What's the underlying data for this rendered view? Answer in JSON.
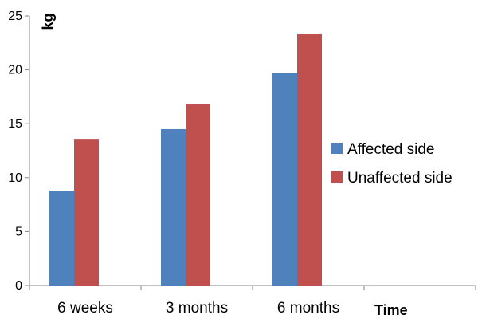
{
  "chart_data": {
    "type": "bar",
    "categories": [
      "6 weeks",
      "3 months",
      "6 months"
    ],
    "series": [
      {
        "name": "Affected side",
        "values": [
          8.8,
          14.5,
          19.7
        ],
        "color": "#4F81BD"
      },
      {
        "name": "Unaffected side",
        "values": [
          13.6,
          16.8,
          23.3
        ],
        "color": "#C0504D"
      }
    ],
    "xlabel": "Time",
    "ylabel": "kg",
    "ylim": [
      0,
      25
    ],
    "yticks": [
      "0",
      "5",
      "10",
      "15",
      "20",
      "25"
    ],
    "grid": false,
    "legend_position": "right"
  }
}
